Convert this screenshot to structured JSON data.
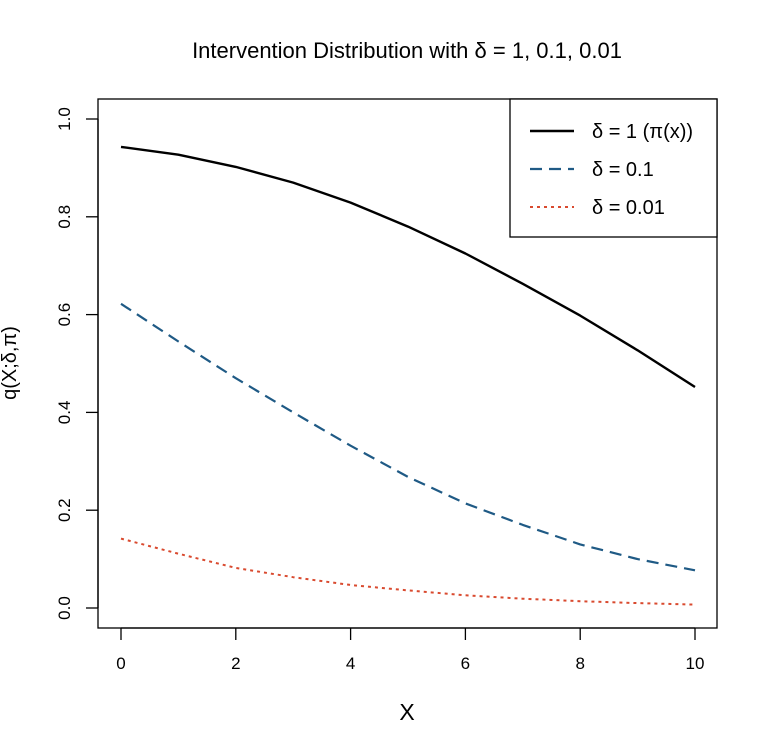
{
  "chart_data": {
    "type": "line",
    "title": "Intervention Distribution with δ = 1, 0.1, 0.01",
    "xlabel": "X",
    "ylabel": "q(X;δ,π)",
    "xlim": [
      0,
      10
    ],
    "ylim": [
      0,
      1.0
    ],
    "x_ticks": [
      "0",
      "2",
      "4",
      "6",
      "8",
      "10"
    ],
    "y_ticks": [
      "0.0",
      "0.2",
      "0.4",
      "0.6",
      "0.8",
      "1.0"
    ],
    "grid": false,
    "legend_position": "top-right",
    "x": [
      0,
      1,
      2,
      3,
      4,
      5,
      6,
      7,
      8,
      9,
      10
    ],
    "series": [
      {
        "name": "δ = 1 (π(x))",
        "color": "#000000",
        "dash": "solid",
        "values": [
          0.943,
          0.927,
          0.902,
          0.87,
          0.829,
          0.78,
          0.725,
          0.663,
          0.598,
          0.527,
          0.452
        ]
      },
      {
        "name": "δ = 0.1",
        "color": "#1f5a85",
        "dash": "dashed",
        "values": [
          0.622,
          0.545,
          0.47,
          0.4,
          0.332,
          0.268,
          0.214,
          0.17,
          0.13,
          0.1,
          0.077
        ]
      },
      {
        "name": "δ = 0.01",
        "color": "#d94a2f",
        "dash": "dotted",
        "values": [
          0.142,
          0.111,
          0.082,
          0.063,
          0.047,
          0.036,
          0.026,
          0.019,
          0.014,
          0.01,
          0.007
        ]
      }
    ]
  }
}
